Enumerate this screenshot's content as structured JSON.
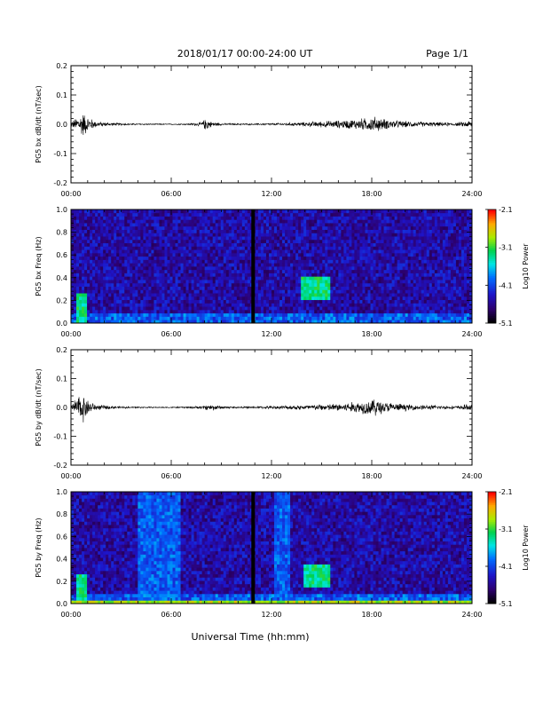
{
  "header": {
    "title": "2018/01/17  00:00-24:00 UT",
    "page": "Page 1/1"
  },
  "footer": {
    "xlabel": "Universal Time (hh:mm)"
  },
  "chart_data": [
    {
      "type": "line",
      "ylabel": "PG5 bx dB/dt (nT/sec)",
      "xlim": [
        0,
        24
      ],
      "ylim": [
        -0.2,
        0.2
      ],
      "x_ticks": [
        "00:00",
        "06:00",
        "12:00",
        "18:00",
        "24:00"
      ],
      "y_ticks": [
        "0.2",
        "0.1",
        "0.0",
        "-0.1",
        "-0.2"
      ],
      "series": [
        {
          "envelope_hours": [
            0.0,
            0.4,
            0.7,
            1.0,
            1.5,
            2.0,
            3.0,
            4.0,
            5.0,
            6.0,
            7.0,
            7.8,
            8.1,
            8.4,
            9.0,
            10.0,
            11.0,
            12.0,
            13.0,
            14.0,
            15.0,
            16.0,
            17.0,
            17.7,
            18.2,
            18.8,
            19.5,
            20.5,
            22.0,
            23.0,
            23.7,
            24.0
          ],
          "envelope_amplitude": [
            0.01,
            0.03,
            0.05,
            0.03,
            0.012,
            0.008,
            0.004,
            0.003,
            0.002,
            0.002,
            0.003,
            0.008,
            0.025,
            0.01,
            0.004,
            0.003,
            0.003,
            0.004,
            0.006,
            0.008,
            0.012,
            0.015,
            0.02,
            0.025,
            0.03,
            0.02,
            0.015,
            0.01,
            0.008,
            0.006,
            0.012,
            0.015
          ]
        }
      ]
    },
    {
      "type": "heatmap",
      "ylabel": "PG5 bx Freq (Hz)",
      "xlim": [
        0,
        24
      ],
      "ylim": [
        0.0,
        1.0
      ],
      "x_ticks": [
        "00:00",
        "06:00",
        "12:00",
        "18:00",
        "24:00"
      ],
      "y_ticks": [
        "1.0",
        "0.8",
        "0.6",
        "0.4",
        "0.2",
        "0.0"
      ],
      "colorbar": {
        "label": "Log10 Power",
        "range": [
          -5.1,
          -2.1
        ],
        "ticks": [
          "-2.1",
          "-3.1",
          "-4.1",
          "-5.1"
        ]
      },
      "data_gap_hours": 10.9,
      "features": [
        {
          "desc": "low-frequency activity",
          "hours": [
            0.3,
            1.0
          ],
          "freq_hz": [
            0.0,
            0.25
          ],
          "log_power": -3.3
        },
        {
          "desc": "band",
          "hours": [
            13.8,
            15.5
          ],
          "freq_hz": [
            0.2,
            0.4
          ],
          "log_power": -3.3
        }
      ]
    },
    {
      "type": "line",
      "ylabel": "PG5 by dB/dt (nT/sec)",
      "xlim": [
        0,
        24
      ],
      "ylim": [
        -0.2,
        0.2
      ],
      "x_ticks": [
        "00:00",
        "06:00",
        "12:00",
        "18:00",
        "24:00"
      ],
      "y_ticks": [
        "0.2",
        "0.1",
        "0.0",
        "-0.1",
        "-0.2"
      ],
      "series": [
        {
          "envelope_hours": [
            0.0,
            0.4,
            0.7,
            1.0,
            1.5,
            2.0,
            3.0,
            4.0,
            5.0,
            6.0,
            7.0,
            7.8,
            8.1,
            8.5,
            9.0,
            10.0,
            11.0,
            12.0,
            13.0,
            14.0,
            15.0,
            16.0,
            17.0,
            17.7,
            18.2,
            18.8,
            19.5,
            20.5,
            22.0,
            23.0,
            23.7,
            24.0
          ],
          "envelope_amplitude": [
            0.015,
            0.04,
            0.06,
            0.03,
            0.012,
            0.008,
            0.004,
            0.003,
            0.002,
            0.002,
            0.003,
            0.006,
            0.01,
            0.012,
            0.006,
            0.003,
            0.004,
            0.006,
            0.008,
            0.01,
            0.012,
            0.016,
            0.022,
            0.028,
            0.035,
            0.022,
            0.016,
            0.01,
            0.008,
            0.006,
            0.012,
            0.015
          ]
        }
      ]
    },
    {
      "type": "heatmap",
      "ylabel": "PG5 by Freq (Hz)",
      "xlim": [
        0,
        24
      ],
      "ylim": [
        0.0,
        1.0
      ],
      "x_ticks": [
        "00:00",
        "06:00",
        "12:00",
        "18:00",
        "24:00"
      ],
      "y_ticks": [
        "1.0",
        "0.8",
        "0.6",
        "0.4",
        "0.2",
        "0.0"
      ],
      "colorbar": {
        "label": "Log10 Power",
        "range": [
          -5.1,
          -2.1
        ],
        "ticks": [
          "-2.1",
          "-3.1",
          "-4.1",
          "-5.1"
        ]
      },
      "data_gap_hours": 10.9,
      "features": [
        {
          "desc": "low-frequency activity",
          "hours": [
            0.3,
            1.0
          ],
          "freq_hz": [
            0.0,
            0.25
          ],
          "log_power": -3.3
        },
        {
          "desc": "broadband",
          "hours": [
            4.0,
            6.5
          ],
          "freq_hz": [
            0.0,
            1.0
          ],
          "log_power": -4.0
        },
        {
          "desc": "broadband",
          "hours": [
            12.2,
            13.2
          ],
          "freq_hz": [
            0.0,
            1.0
          ],
          "log_power": -4.0
        },
        {
          "desc": "band",
          "hours": [
            14.0,
            15.5
          ],
          "freq_hz": [
            0.15,
            0.35
          ],
          "log_power": -3.3
        },
        {
          "desc": "band",
          "hours": [
            0.0,
            24.0
          ],
          "freq_hz": [
            0.0,
            0.03
          ],
          "log_power": -2.8
        }
      ]
    }
  ]
}
